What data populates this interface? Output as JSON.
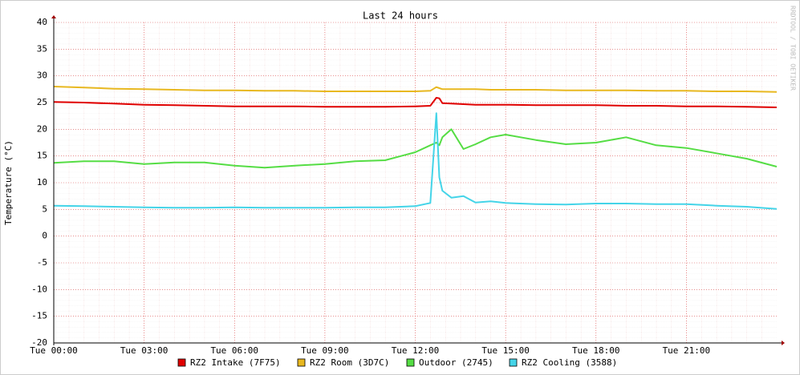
{
  "chart_data": {
    "type": "line",
    "title": "Last 24 hours",
    "y_label": "Temperature (°C)",
    "watermark": "RRDTOOL / TOBI OETIKER",
    "x": [
      0,
      1,
      2,
      3,
      4,
      5,
      6,
      7,
      8,
      9,
      10,
      11,
      12,
      12.5,
      12.7,
      12.8,
      12.9,
      13.2,
      13.6,
      14,
      14.5,
      15,
      16,
      17,
      18,
      19,
      20,
      21,
      22,
      23,
      24
    ],
    "xlim": [
      0,
      24
    ],
    "xticks": [
      {
        "value": 0,
        "label": "Tue 00:00"
      },
      {
        "value": 3,
        "label": "Tue 03:00"
      },
      {
        "value": 6,
        "label": "Tue 06:00"
      },
      {
        "value": 9,
        "label": "Tue 09:00"
      },
      {
        "value": 12,
        "label": "Tue 12:00"
      },
      {
        "value": 15,
        "label": "Tue 15:00"
      },
      {
        "value": 18,
        "label": "Tue 18:00"
      },
      {
        "value": 21,
        "label": "Tue 21:00"
      }
    ],
    "ylim": [
      -20,
      40
    ],
    "yticks": [
      -20,
      -15,
      -10,
      -5,
      0,
      5,
      10,
      15,
      20,
      25,
      30,
      35,
      40
    ],
    "grid": true,
    "legend": "bottom",
    "series": [
      {
        "name": "RZ2 Intake (7F75)",
        "color": "#e00000",
        "values": [
          25.1,
          25,
          24.8,
          24.6,
          24.5,
          24.4,
          24.3,
          24.3,
          24.3,
          24.2,
          24.2,
          24.2,
          24.3,
          24.4,
          25.9,
          25.8,
          24.9,
          24.8,
          24.7,
          24.6,
          24.6,
          24.6,
          24.5,
          24.5,
          24.5,
          24.4,
          24.4,
          24.3,
          24.3,
          24.2,
          24.1
        ]
      },
      {
        "name": "RZ2 Room (3D7C)",
        "color": "#e8b820",
        "values": [
          28,
          27.8,
          27.6,
          27.5,
          27.4,
          27.3,
          27.3,
          27.2,
          27.2,
          27.1,
          27.1,
          27.1,
          27.1,
          27.2,
          27.9,
          27.7,
          27.5,
          27.5,
          27.5,
          27.5,
          27.4,
          27.4,
          27.4,
          27.3,
          27.3,
          27.3,
          27.2,
          27.2,
          27.1,
          27.1,
          27
        ]
      },
      {
        "name": "Outdoor (2745)",
        "color": "#55dd44",
        "values": [
          13.7,
          14,
          14,
          13.5,
          13.8,
          13.8,
          13.2,
          12.8,
          13.2,
          13.5,
          14,
          14.2,
          15.7,
          17,
          17.5,
          17,
          18.5,
          20,
          16.3,
          17.2,
          18.5,
          19,
          18,
          17.2,
          17.5,
          18.5,
          17,
          16.5,
          15.5,
          14.5,
          13
        ]
      },
      {
        "name": "RZ2 Cooling (3588)",
        "color": "#44d4e8",
        "values": [
          5.7,
          5.6,
          5.5,
          5.4,
          5.3,
          5.3,
          5.4,
          5.3,
          5.3,
          5.3,
          5.4,
          5.4,
          5.6,
          6.2,
          23,
          11,
          8.5,
          7.2,
          7.5,
          6.3,
          6.5,
          6.2,
          6,
          5.9,
          6.1,
          6.1,
          6,
          6,
          5.7,
          5.5,
          5.1
        ]
      }
    ]
  }
}
